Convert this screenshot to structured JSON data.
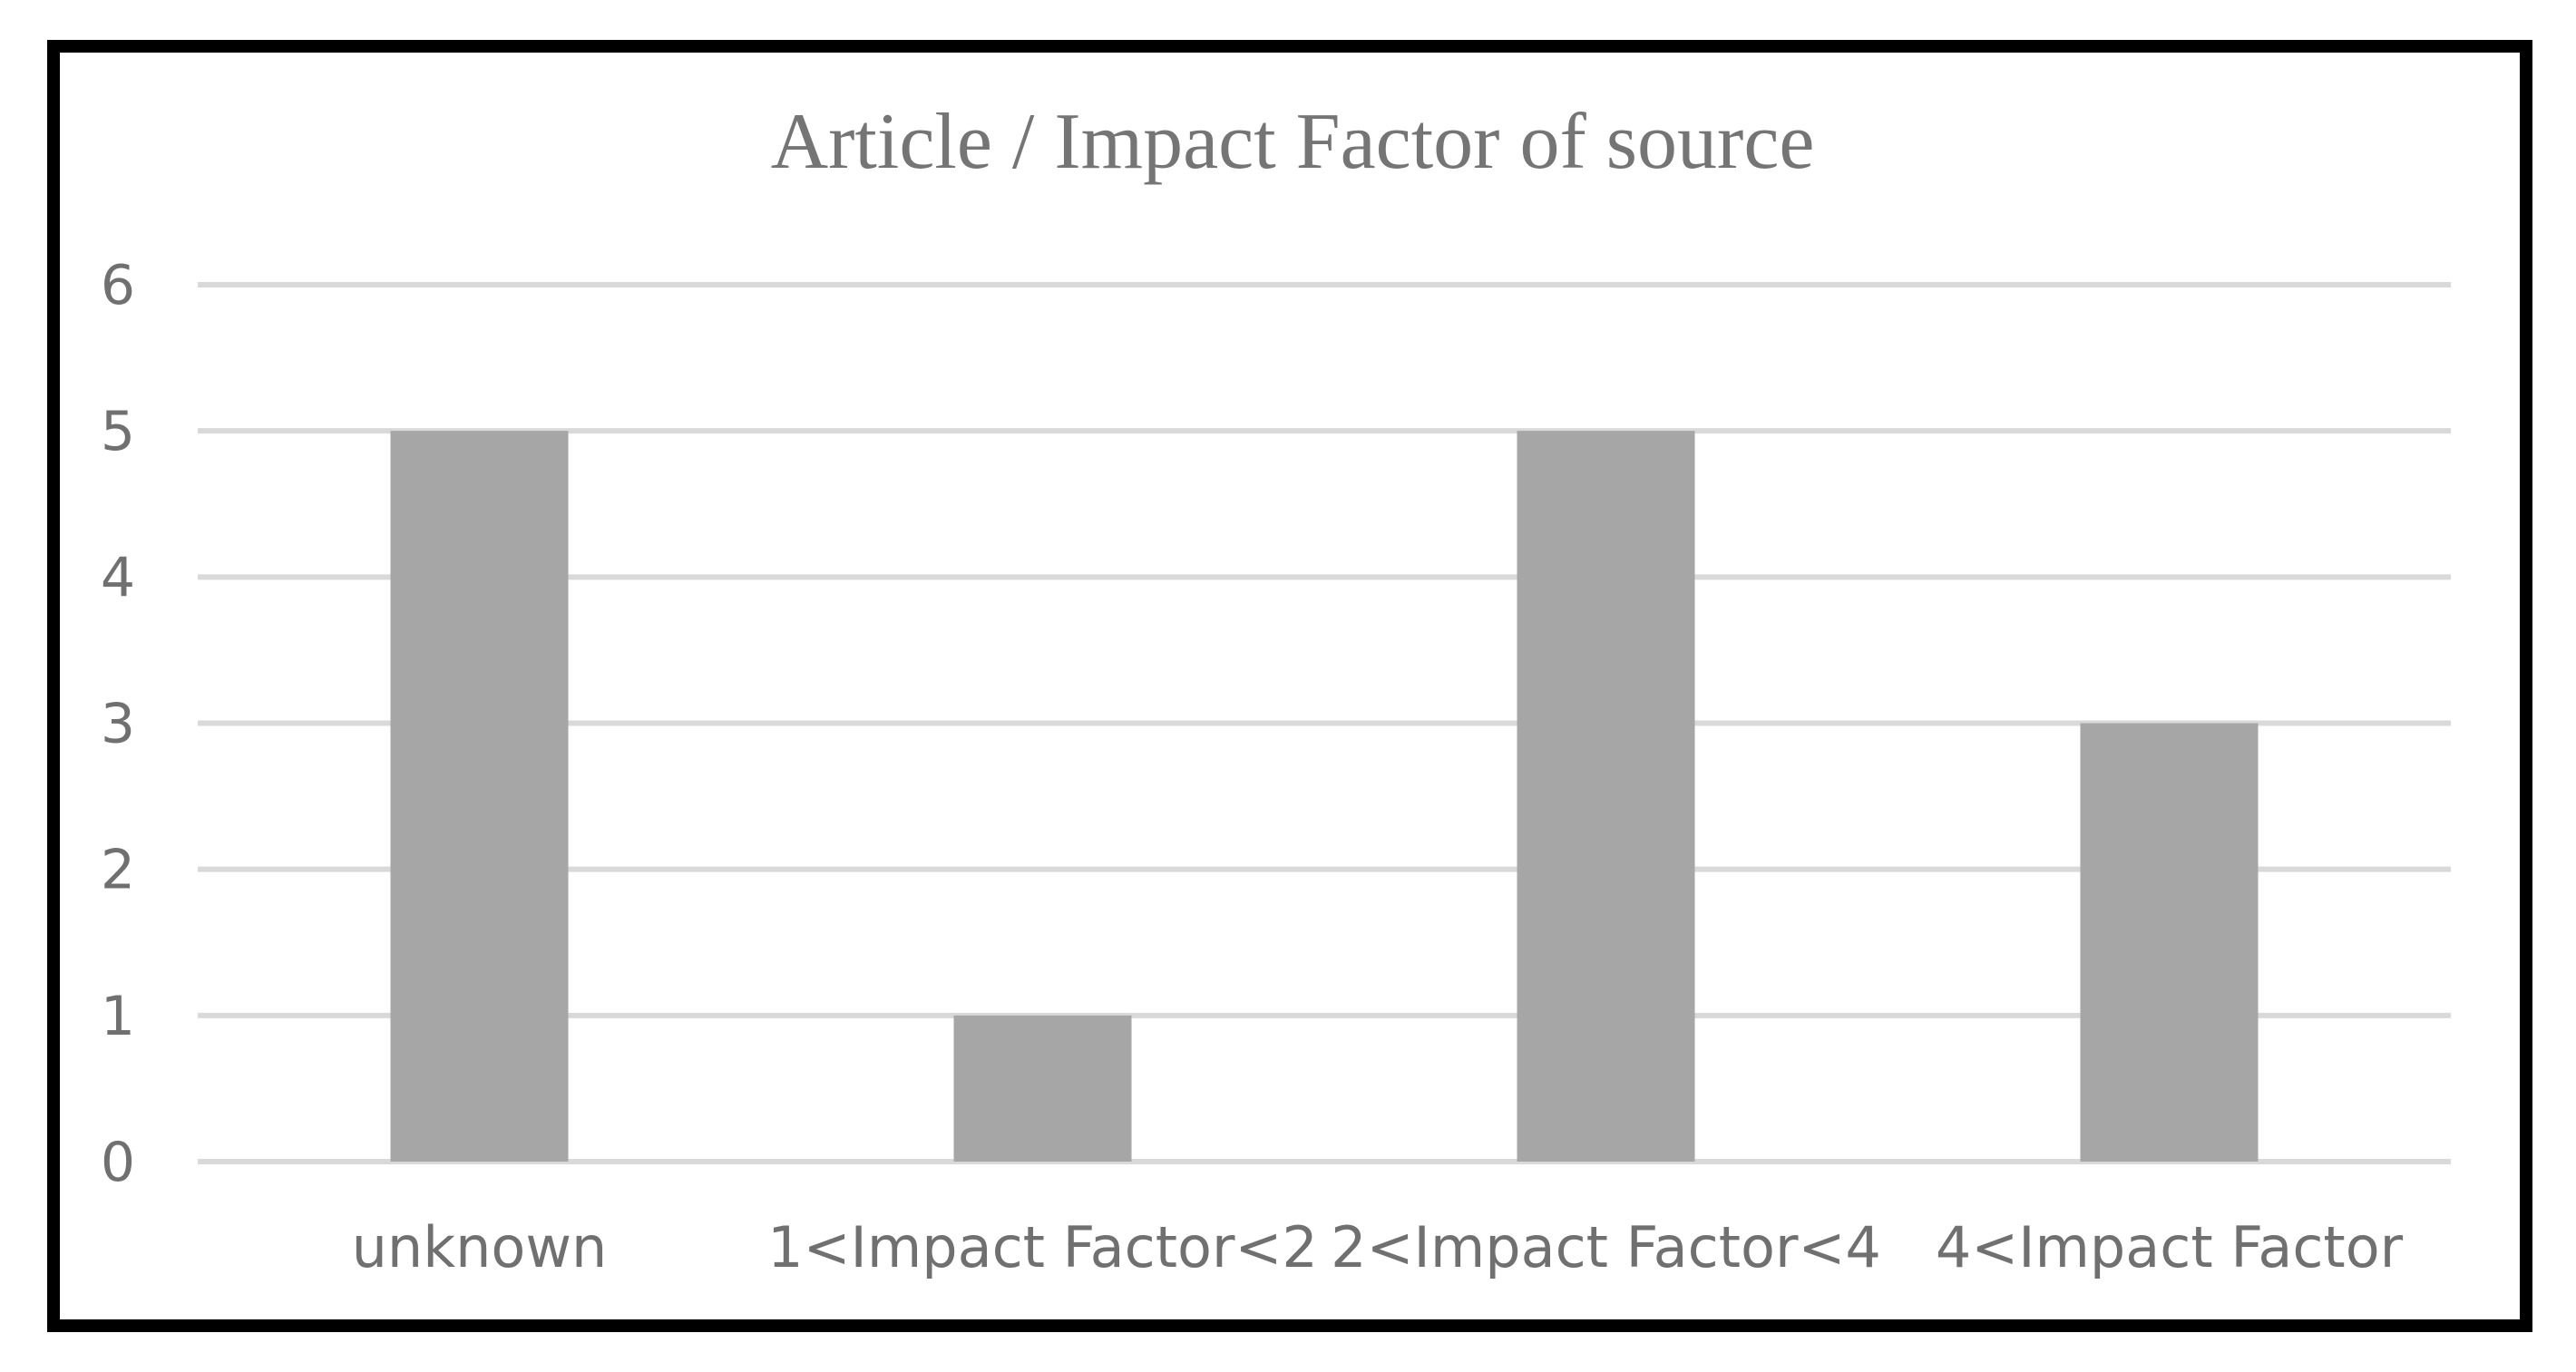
{
  "chart_data": {
    "type": "bar",
    "title": "Article / Impact Factor of source",
    "xlabel": "",
    "ylabel": "",
    "categories": [
      "unknown",
      "1<Impact Factor<2",
      "2<Impact Factor<4",
      "4<Impact Factor"
    ],
    "values": [
      5,
      1,
      5,
      3
    ],
    "ylim": [
      0,
      6
    ],
    "yticks": [
      "0",
      "1",
      "2",
      "3",
      "4",
      "5",
      "6"
    ],
    "grid": true,
    "legend": "none",
    "colors": {
      "bar": "#a6a6a6",
      "grid": "#d9d9d9",
      "text": "#707070",
      "frame": "#000000"
    }
  }
}
